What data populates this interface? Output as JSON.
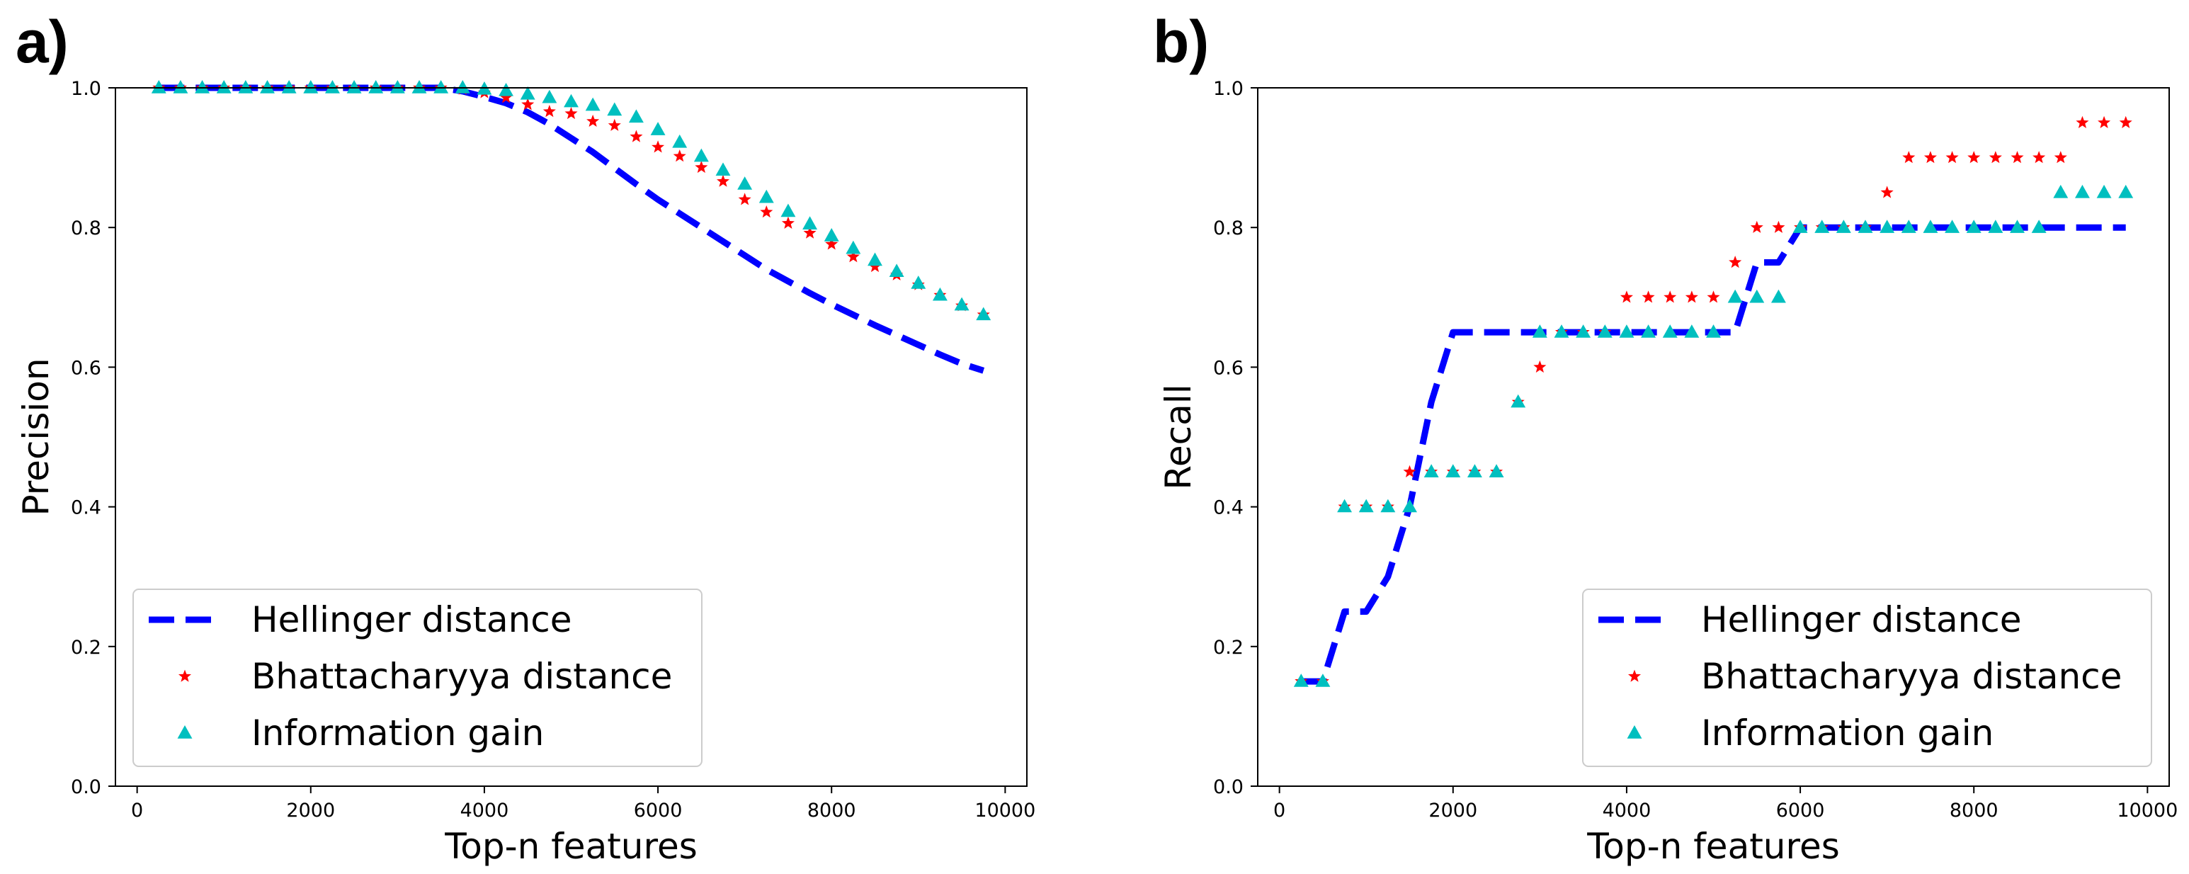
{
  "chart_data": [
    {
      "panel": "a)",
      "type": "line",
      "xlabel": "Top-n features",
      "ylabel": "Precision",
      "xlim": [
        -250,
        10250
      ],
      "ylim": [
        0.0,
        1.0
      ],
      "xticks": [
        0,
        2000,
        4000,
        6000,
        8000,
        10000
      ],
      "yticks": [
        0.0,
        0.2,
        0.4,
        0.6,
        0.8,
        1.0
      ],
      "legend_position": "lower-left",
      "series": [
        {
          "name": "Hellinger distance",
          "style": "dashed-line",
          "color": "#0000ff",
          "x": [
            250,
            500,
            750,
            1000,
            1250,
            1500,
            1750,
            2000,
            2250,
            2500,
            2750,
            3000,
            3250,
            3500,
            3750,
            4000,
            4250,
            4500,
            4750,
            5000,
            5250,
            5500,
            5750,
            6000,
            6250,
            6500,
            6750,
            7000,
            7250,
            7500,
            7750,
            8000,
            8250,
            8500,
            8750,
            9000,
            9250,
            9500,
            9750
          ],
          "y": [
            1.0,
            1.0,
            1.0,
            1.0,
            1.0,
            1.0,
            1.0,
            1.0,
            1.0,
            1.0,
            1.0,
            1.0,
            1.0,
            1.0,
            0.995,
            0.987,
            0.978,
            0.965,
            0.948,
            0.928,
            0.908,
            0.885,
            0.862,
            0.84,
            0.82,
            0.8,
            0.78,
            0.76,
            0.74,
            0.723,
            0.706,
            0.69,
            0.675,
            0.66,
            0.646,
            0.632,
            0.618,
            0.605,
            0.595
          ]
        },
        {
          "name": "Bhattacharyya distance",
          "style": "star-markers",
          "color": "#ff0000",
          "x": [
            250,
            500,
            750,
            1000,
            1250,
            1500,
            1750,
            2000,
            2250,
            2500,
            2750,
            3000,
            3250,
            3500,
            3750,
            4000,
            4250,
            4500,
            4750,
            5000,
            5250,
            5500,
            5750,
            6000,
            6250,
            6500,
            6750,
            7000,
            7250,
            7500,
            7750,
            8000,
            8250,
            8500,
            8750,
            9000,
            9250,
            9500,
            9750
          ],
          "y": [
            1.0,
            1.0,
            1.0,
            1.0,
            1.0,
            1.0,
            1.0,
            1.0,
            1.0,
            1.0,
            1.0,
            1.0,
            1.0,
            1.0,
            0.998,
            0.993,
            0.986,
            0.976,
            0.966,
            0.963,
            0.952,
            0.946,
            0.93,
            0.915,
            0.902,
            0.886,
            0.866,
            0.84,
            0.822,
            0.806,
            0.792,
            0.776,
            0.758,
            0.744,
            0.732,
            0.718,
            0.703,
            0.688,
            0.675
          ]
        },
        {
          "name": "Information gain",
          "style": "triangle-markers",
          "color": "#00bfbf",
          "x": [
            250,
            500,
            750,
            1000,
            1250,
            1500,
            1750,
            2000,
            2250,
            2500,
            2750,
            3000,
            3250,
            3500,
            3750,
            4000,
            4250,
            4500,
            4750,
            5000,
            5250,
            5500,
            5750,
            6000,
            6250,
            6500,
            6750,
            7000,
            7250,
            7500,
            7750,
            8000,
            8250,
            8500,
            8750,
            9000,
            9250,
            9500,
            9750
          ],
          "y": [
            1.0,
            1.0,
            1.0,
            1.0,
            1.0,
            1.0,
            1.0,
            1.0,
            1.0,
            1.0,
            1.0,
            1.0,
            1.0,
            1.0,
            1.0,
            0.998,
            0.996,
            0.991,
            0.986,
            0.98,
            0.975,
            0.968,
            0.958,
            0.94,
            0.922,
            0.902,
            0.882,
            0.862,
            0.843,
            0.823,
            0.805,
            0.788,
            0.77,
            0.753,
            0.737,
            0.72,
            0.703,
            0.689,
            0.675
          ]
        }
      ]
    },
    {
      "panel": "b)",
      "type": "line",
      "xlabel": "Top-n features",
      "ylabel": "Recall",
      "xlim": [
        -250,
        10250
      ],
      "ylim": [
        0.0,
        1.0
      ],
      "xticks": [
        0,
        2000,
        4000,
        6000,
        8000,
        10000
      ],
      "yticks": [
        0.0,
        0.2,
        0.4,
        0.6,
        0.8,
        1.0
      ],
      "legend_position": "lower-right",
      "series": [
        {
          "name": "Hellinger distance",
          "style": "dashed-line",
          "color": "#0000ff",
          "x": [
            250,
            500,
            750,
            1000,
            1250,
            1500,
            1750,
            2000,
            2250,
            2500,
            2750,
            3000,
            3250,
            3500,
            3750,
            4000,
            4250,
            4500,
            4750,
            5000,
            5250,
            5500,
            5750,
            6000,
            6250,
            6500,
            6750,
            7000,
            7250,
            7500,
            7750,
            8000,
            8250,
            8500,
            8750,
            9000,
            9250,
            9500,
            9750
          ],
          "y": [
            0.15,
            0.15,
            0.25,
            0.25,
            0.3,
            0.4,
            0.55,
            0.65,
            0.65,
            0.65,
            0.65,
            0.65,
            0.65,
            0.65,
            0.65,
            0.65,
            0.65,
            0.65,
            0.65,
            0.65,
            0.65,
            0.75,
            0.75,
            0.8,
            0.8,
            0.8,
            0.8,
            0.8,
            0.8,
            0.8,
            0.8,
            0.8,
            0.8,
            0.8,
            0.8,
            0.8,
            0.8,
            0.8,
            0.8
          ]
        },
        {
          "name": "Bhattacharyya distance",
          "style": "star-markers",
          "color": "#ff0000",
          "x": [
            250,
            500,
            750,
            1000,
            1250,
            1500,
            1750,
            2000,
            2250,
            2500,
            2750,
            3000,
            3250,
            3500,
            3750,
            4000,
            4250,
            4500,
            4750,
            5000,
            5250,
            5500,
            5750,
            6000,
            6250,
            6500,
            6750,
            7000,
            7250,
            7500,
            7750,
            8000,
            8250,
            8500,
            8750,
            9000,
            9250,
            9500,
            9750
          ],
          "y": [
            0.15,
            0.15,
            0.4,
            0.4,
            0.4,
            0.45,
            0.45,
            0.45,
            0.45,
            0.45,
            0.55,
            0.6,
            0.65,
            0.65,
            0.65,
            0.7,
            0.7,
            0.7,
            0.7,
            0.7,
            0.75,
            0.8,
            0.8,
            0.8,
            0.8,
            0.8,
            0.8,
            0.85,
            0.9,
            0.9,
            0.9,
            0.9,
            0.9,
            0.9,
            0.9,
            0.9,
            0.95,
            0.95,
            0.95
          ]
        },
        {
          "name": "Information gain",
          "style": "triangle-markers",
          "color": "#00bfbf",
          "x": [
            250,
            500,
            750,
            1000,
            1250,
            1500,
            1750,
            2000,
            2250,
            2500,
            2750,
            3000,
            3250,
            3500,
            3750,
            4000,
            4250,
            4500,
            4750,
            5000,
            5250,
            5500,
            5750,
            6000,
            6250,
            6500,
            6750,
            7000,
            7250,
            7500,
            7750,
            8000,
            8250,
            8500,
            8750,
            9000,
            9250,
            9500,
            9750
          ],
          "y": [
            0.15,
            0.15,
            0.4,
            0.4,
            0.4,
            0.4,
            0.45,
            0.45,
            0.45,
            0.45,
            0.55,
            0.65,
            0.65,
            0.65,
            0.65,
            0.65,
            0.65,
            0.65,
            0.65,
            0.65,
            0.7,
            0.7,
            0.7,
            0.8,
            0.8,
            0.8,
            0.8,
            0.8,
            0.8,
            0.8,
            0.8,
            0.8,
            0.8,
            0.8,
            0.8,
            0.85,
            0.85,
            0.85,
            0.85
          ]
        }
      ]
    }
  ]
}
